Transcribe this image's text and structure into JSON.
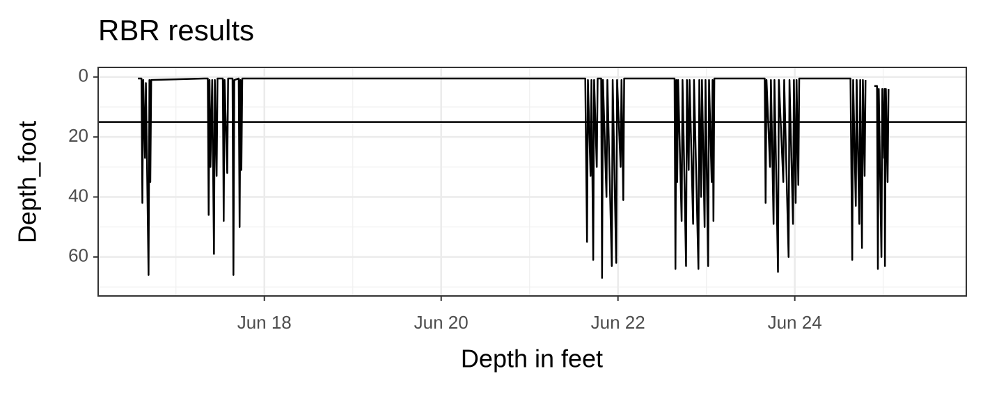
{
  "chart_data": {
    "type": "line",
    "title": "RBR results",
    "x_label": "Depth in feet",
    "y_label": "Depth_foot",
    "color": "#000000",
    "hline": 15,
    "xlim": [
      16.12,
      25.94
    ],
    "xticks": [
      {
        "value": 18,
        "label": "Jun 18"
      },
      {
        "value": 20,
        "label": "Jun 20"
      },
      {
        "value": 22,
        "label": "Jun 22"
      },
      {
        "value": 24,
        "label": "Jun 24"
      }
    ],
    "xminor": [
      17,
      19,
      21,
      23,
      25
    ],
    "ylim": [
      73,
      -3.2
    ],
    "yticks": [
      0,
      20,
      40,
      60
    ],
    "yminor": [
      10,
      30,
      50,
      70
    ],
    "grid": true,
    "x": [
      16.57,
      16.61,
      16.62,
      16.63,
      16.65,
      16.66,
      16.69,
      16.7,
      16.71,
      16.72,
      17.32,
      17.36,
      17.37,
      17.38,
      17.39,
      17.41,
      17.43,
      17.44,
      17.46,
      17.47,
      17.53,
      17.54,
      17.55,
      17.58,
      17.59,
      17.64,
      17.65,
      17.66,
      17.71,
      17.72,
      17.73,
      17.74,
      17.75,
      21.63,
      21.65,
      21.66,
      21.69,
      21.7,
      21.72,
      21.73,
      21.76,
      21.77,
      21.81,
      21.82,
      21.83,
      21.87,
      21.88,
      21.93,
      21.94,
      21.98,
      21.99,
      22.03,
      22.04,
      22.06,
      22.07,
      22.64,
      22.65,
      22.66,
      22.67,
      22.68,
      22.72,
      22.73,
      22.77,
      22.78,
      22.8,
      22.81,
      22.85,
      22.86,
      22.91,
      22.92,
      22.94,
      22.95,
      22.98,
      22.99,
      23.02,
      23.03,
      23.06,
      23.07,
      23.08,
      23.09,
      23.66,
      23.67,
      23.68,
      23.72,
      23.73,
      23.76,
      23.77,
      23.81,
      23.82,
      23.87,
      23.88,
      23.93,
      23.94,
      23.98,
      23.99,
      24.01,
      24.02,
      24.04,
      24.05,
      24.63,
      24.65,
      24.66,
      24.69,
      24.7,
      24.73,
      24.74,
      24.76,
      24.77,
      24.79,
      24.8,
      24.85,
      24.9,
      24.93,
      24.94,
      24.95,
      24.98,
      24.99,
      25.01,
      25.015,
      25.02,
      25.03,
      25.05,
      25.06
    ],
    "values": [
      0.5,
      0.5,
      42,
      1,
      27,
      2,
      66,
      1,
      35,
      1,
      0.5,
      0.5,
      46,
      1,
      30,
      1,
      59,
      1,
      33,
      0.5,
      0.5,
      48,
      1,
      32,
      0.5,
      0.5,
      66,
      1,
      0.5,
      50,
      1,
      31,
      0.5,
      0.5,
      55,
      1,
      33,
      1,
      61,
      1,
      30,
      0.5,
      0.5,
      67,
      1,
      40,
      1,
      63,
      1,
      62,
      1,
      30,
      1,
      41,
      0.5,
      0.5,
      64,
      1,
      35,
      1,
      48,
      1,
      63,
      1,
      31,
      1,
      49,
      1,
      64,
      1,
      40,
      1,
      50,
      1,
      63,
      1,
      35,
      1,
      48,
      0.5,
      0.5,
      42,
      1,
      30,
      1,
      49,
      1,
      65,
      1,
      35,
      1,
      60,
      1,
      49,
      1,
      42,
      1,
      36,
      0.5,
      0.5,
      61,
      1,
      43,
      1,
      49,
      1,
      57,
      1,
      33,
      1,
      null,
      3,
      3,
      64,
      4,
      60,
      4,
      27,
      4,
      63,
      4,
      35,
      4
    ]
  }
}
